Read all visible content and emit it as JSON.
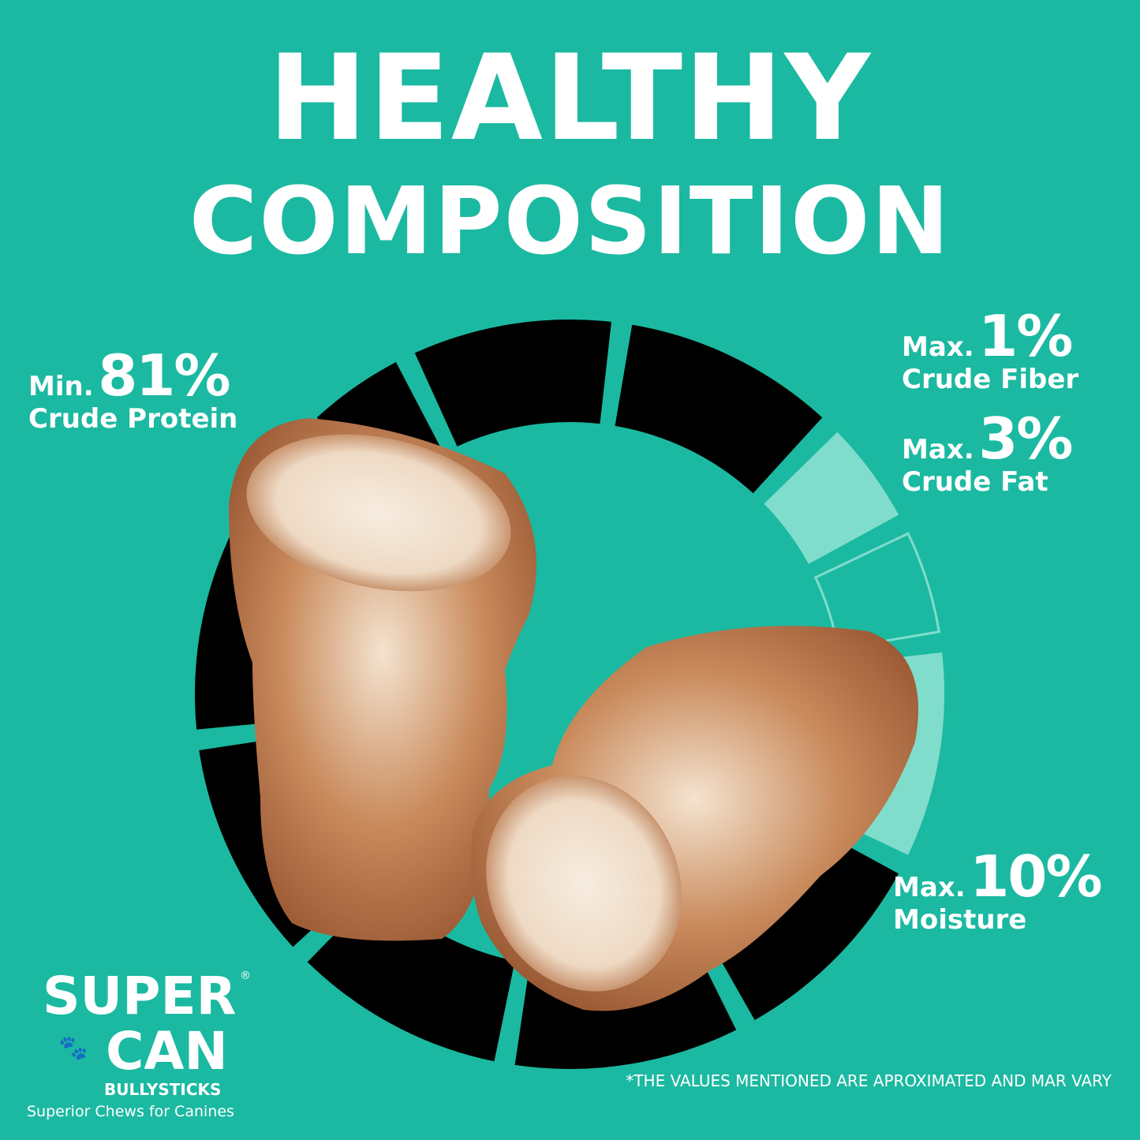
{
  "title_line1": "HEALTHY",
  "title_line2": "COMPOSITION",
  "stats": [
    {
      "prefix": "Min.",
      "value": "81%",
      "label": "Crude Protein"
    },
    {
      "prefix": "Max.",
      "value": "1%",
      "label": "Crude Fiber"
    },
    {
      "prefix": "Max.",
      "value": "3%",
      "label": "Crude Fat"
    },
    {
      "prefix": "Max.",
      "value": "10%",
      "label": "Moisture"
    }
  ],
  "colors": {
    "background": "#1bb9a1",
    "ring_dark": "#000000",
    "ring_light": "#80ddcc",
    "text": "#ffffff"
  },
  "logo": {
    "line1": "SUPER",
    "line2": "CAN",
    "registered": "®",
    "line3": "BULLYSTICKS",
    "tagline": "Superior Chews for Canines"
  },
  "footnote": "*THE VALUES MENTIONED ARE APROXIMATED AND MAR VARY"
}
